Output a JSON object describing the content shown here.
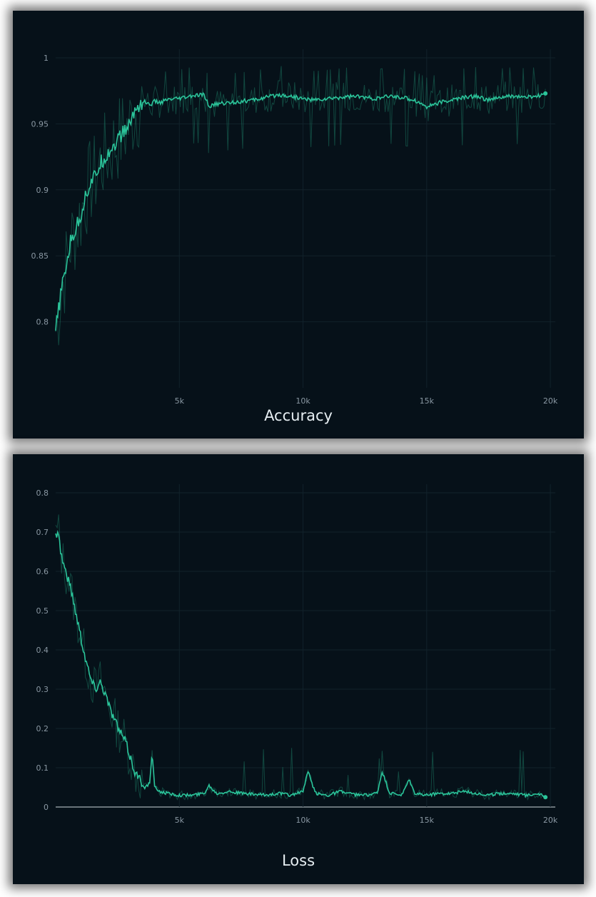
{
  "colors": {
    "background": "#061119",
    "series": "#2bc49a",
    "raw": "#1f8a6e",
    "grid": "#12222b",
    "tick": "#8a98a3"
  },
  "chart_data": [
    {
      "type": "line",
      "title": "Accuracy",
      "xlabel": "",
      "ylabel": "",
      "xlim": [
        0,
        20200
      ],
      "ylim": [
        0.75,
        1.0
      ],
      "x_ticks": [
        5000,
        10000,
        15000,
        20000
      ],
      "x_tick_labels": [
        "5k",
        "10k",
        "15k",
        "20k"
      ],
      "y_ticks": [
        0.8,
        0.85,
        0.9,
        0.95,
        1.0
      ],
      "y_tick_labels": [
        "0.8",
        "0.85",
        "0.9",
        "0.95",
        "1"
      ],
      "grid": true,
      "series": [
        {
          "x": [
            0,
            200,
            400,
            600,
            800,
            1000,
            1200,
            1400,
            1600,
            1800,
            2000,
            2200,
            2400,
            2600,
            2800,
            3000,
            3200,
            3400,
            3600,
            3800,
            4000,
            4200,
            4500,
            5000,
            5500,
            6000,
            6200,
            6500,
            7000,
            7500,
            8000,
            8500,
            9000,
            9500,
            10000,
            10500,
            11000,
            11500,
            12000,
            12500,
            13000,
            13500,
            14000,
            14500,
            15000,
            15500,
            16000,
            16500,
            17000,
            17500,
            18000,
            18500,
            19000,
            19500,
            19800
          ],
          "values": [
            0.793,
            0.82,
            0.84,
            0.86,
            0.87,
            0.88,
            0.895,
            0.905,
            0.91,
            0.92,
            0.925,
            0.93,
            0.935,
            0.94,
            0.945,
            0.95,
            0.96,
            0.965,
            0.967,
            0.964,
            0.967,
            0.966,
            0.968,
            0.969,
            0.971,
            0.972,
            0.963,
            0.965,
            0.966,
            0.967,
            0.968,
            0.97,
            0.972,
            0.971,
            0.969,
            0.968,
            0.969,
            0.97,
            0.971,
            0.97,
            0.969,
            0.971,
            0.97,
            0.968,
            0.963,
            0.966,
            0.968,
            0.97,
            0.971,
            0.968,
            0.97,
            0.971,
            0.97,
            0.971,
            0.973
          ]
        }
      ]
    },
    {
      "type": "line",
      "title": "Loss",
      "xlabel": "",
      "ylabel": "",
      "xlim": [
        0,
        20200
      ],
      "ylim": [
        0,
        0.8
      ],
      "x_ticks": [
        5000,
        10000,
        15000,
        20000
      ],
      "x_tick_labels": [
        "5k",
        "10k",
        "15k",
        "20k"
      ],
      "y_ticks": [
        0,
        0.1,
        0.2,
        0.3,
        0.4,
        0.5,
        0.6,
        0.7,
        0.8
      ],
      "y_tick_labels": [
        "0",
        "0.1",
        "0.2",
        "0.3",
        "0.4",
        "0.5",
        "0.6",
        "0.7",
        "0.8"
      ],
      "grid": true,
      "series": [
        {
          "x": [
            0,
            100,
            200,
            400,
            600,
            800,
            1000,
            1200,
            1400,
            1600,
            1800,
            2000,
            2200,
            2400,
            2600,
            2800,
            3000,
            3200,
            3400,
            3600,
            3800,
            3900,
            4000,
            4200,
            4500,
            5000,
            5500,
            6000,
            6200,
            6500,
            7000,
            7500,
            8000,
            8500,
            9000,
            9500,
            10000,
            10200,
            10500,
            11000,
            11500,
            12000,
            12500,
            13000,
            13200,
            13500,
            14000,
            14300,
            14500,
            15000,
            15500,
            16000,
            16500,
            17000,
            17500,
            18000,
            18500,
            19000,
            19500,
            19800
          ],
          "values": [
            0.69,
            0.71,
            0.65,
            0.6,
            0.56,
            0.5,
            0.44,
            0.38,
            0.33,
            0.3,
            0.32,
            0.29,
            0.25,
            0.22,
            0.19,
            0.17,
            0.13,
            0.09,
            0.07,
            0.05,
            0.06,
            0.14,
            0.05,
            0.04,
            0.035,
            0.03,
            0.03,
            0.035,
            0.055,
            0.035,
            0.04,
            0.035,
            0.032,
            0.03,
            0.035,
            0.03,
            0.04,
            0.09,
            0.035,
            0.03,
            0.04,
            0.032,
            0.03,
            0.035,
            0.09,
            0.035,
            0.03,
            0.07,
            0.035,
            0.03,
            0.035,
            0.035,
            0.04,
            0.035,
            0.03,
            0.035,
            0.035,
            0.03,
            0.035,
            0.025
          ]
        }
      ]
    }
  ]
}
